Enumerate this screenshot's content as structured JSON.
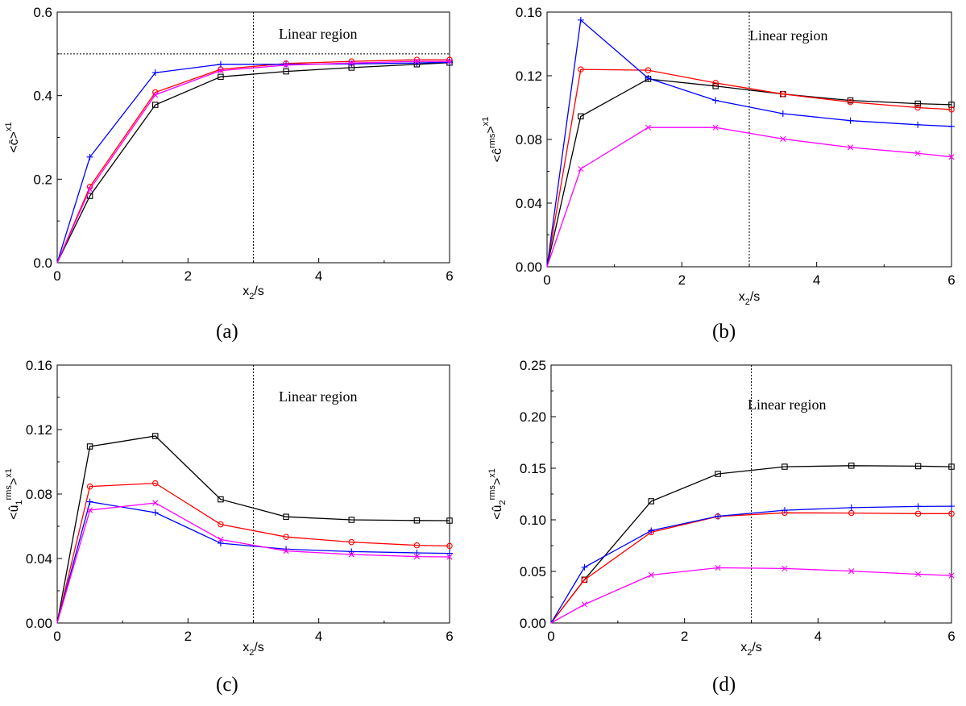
{
  "chart_data": [
    {
      "panel": "a",
      "caption": "(a)",
      "type": "line",
      "xlabel": "x2/s",
      "ylabel": "<c̄>x1",
      "xlim": [
        0,
        6
      ],
      "ylim": [
        0,
        0.6
      ],
      "xticks": [
        0,
        2,
        4,
        6
      ],
      "yticks": [
        0.0,
        0.2,
        0.4,
        0.6
      ],
      "ytick_labels": [
        "0.0",
        "0.2",
        "0.4",
        "0.6"
      ],
      "vline_x": 3,
      "hline_y": 0.5,
      "annotation": "Linear region",
      "x": [
        0,
        0.5,
        1.5,
        2.5,
        3.5,
        4.5,
        5.5,
        6
      ],
      "series": [
        {
          "color": "#000000",
          "marker": "square",
          "values": [
            0,
            0.16,
            0.378,
            0.445,
            0.458,
            0.467,
            0.475,
            0.479
          ]
        },
        {
          "color": "#ff0000",
          "marker": "circle",
          "values": [
            0,
            0.182,
            0.408,
            0.463,
            0.477,
            0.482,
            0.486,
            0.486
          ]
        },
        {
          "color": "#0000ff",
          "marker": "plus",
          "values": [
            0,
            0.253,
            0.455,
            0.475,
            0.475,
            0.476,
            0.478,
            0.48
          ]
        },
        {
          "color": "#ff00ff",
          "marker": "cross",
          "values": [
            0,
            0.176,
            0.402,
            0.46,
            0.473,
            0.478,
            0.482,
            0.482
          ]
        }
      ]
    },
    {
      "panel": "b",
      "caption": "(b)",
      "type": "line",
      "xlabel": "x2/s",
      "ylabel": "<ĉrms>x1",
      "xlim": [
        0,
        6
      ],
      "ylim": [
        0,
        0.16
      ],
      "xticks": [
        0,
        2,
        4,
        6
      ],
      "yticks": [
        0.0,
        0.04,
        0.08,
        0.12,
        0.16
      ],
      "ytick_labels": [
        "0.00",
        "0.04",
        "0.08",
        "0.12",
        "0.16"
      ],
      "vline_x": 3,
      "annotation": "Linear region",
      "x": [
        0,
        0.5,
        1.5,
        2.5,
        3.5,
        4.5,
        5.5,
        6
      ],
      "series": [
        {
          "color": "#000000",
          "marker": "square",
          "values": [
            0,
            0.0945,
            0.118,
            0.1135,
            0.1085,
            0.1045,
            0.1025,
            0.1018
          ]
        },
        {
          "color": "#ff0000",
          "marker": "circle",
          "values": [
            0,
            0.124,
            0.1235,
            0.1155,
            0.1085,
            0.1035,
            0.1,
            0.0988
          ]
        },
        {
          "color": "#0000ff",
          "marker": "plus",
          "values": [
            0,
            0.155,
            0.1185,
            0.1045,
            0.0962,
            0.0918,
            0.0892,
            0.0882
          ]
        },
        {
          "color": "#ff00ff",
          "marker": "cross",
          "values": [
            0,
            0.0615,
            0.0875,
            0.0875,
            0.0803,
            0.075,
            0.0713,
            0.069
          ]
        }
      ]
    },
    {
      "panel": "c",
      "caption": "(c)",
      "type": "line",
      "xlabel": "x2/s",
      "ylabel": "<û1rms>x1",
      "xlim": [
        0,
        6
      ],
      "ylim": [
        0,
        0.16
      ],
      "xticks": [
        0,
        2,
        4,
        6
      ],
      "yticks": [
        0.0,
        0.04,
        0.08,
        0.12,
        0.16
      ],
      "ytick_labels": [
        "0.00",
        "0.04",
        "0.08",
        "0.12",
        "0.16"
      ],
      "vline_x": 3,
      "annotation": "Linear region",
      "x": [
        0,
        0.5,
        1.5,
        2.5,
        3.5,
        4.5,
        5.5,
        6
      ],
      "series": [
        {
          "color": "#000000",
          "marker": "square",
          "values": [
            0,
            0.1095,
            0.116,
            0.0767,
            0.0659,
            0.064,
            0.0636,
            0.0635
          ]
        },
        {
          "color": "#ff0000",
          "marker": "circle",
          "values": [
            0,
            0.0847,
            0.0867,
            0.0612,
            0.0534,
            0.0502,
            0.0482,
            0.0478
          ]
        },
        {
          "color": "#0000ff",
          "marker": "plus",
          "values": [
            0,
            0.0752,
            0.0685,
            0.0495,
            0.0458,
            0.0443,
            0.0435,
            0.0432
          ]
        },
        {
          "color": "#ff00ff",
          "marker": "cross",
          "values": [
            0,
            0.07,
            0.0745,
            0.0518,
            0.0447,
            0.0425,
            0.0412,
            0.041
          ]
        }
      ]
    },
    {
      "panel": "d",
      "caption": "(d)",
      "type": "line",
      "xlabel": "x2/s",
      "ylabel": "<û2rms>x1",
      "xlim": [
        0,
        6
      ],
      "ylim": [
        0,
        0.25
      ],
      "xticks": [
        0,
        2,
        4,
        6
      ],
      "yticks": [
        0.0,
        0.05,
        0.1,
        0.15,
        0.2,
        0.25
      ],
      "ytick_labels": [
        "0.00",
        "0.05",
        "0.10",
        "0.15",
        "0.20",
        "0.25"
      ],
      "vline_x": 3,
      "annotation": "Linear region",
      "x": [
        0,
        0.5,
        1.5,
        2.5,
        3.5,
        4.5,
        5.5,
        6
      ],
      "series": [
        {
          "color": "#000000",
          "marker": "square",
          "values": [
            0,
            0.042,
            0.118,
            0.1445,
            0.1515,
            0.1525,
            0.152,
            0.1515
          ]
        },
        {
          "color": "#ff0000",
          "marker": "circle",
          "values": [
            0,
            0.0418,
            0.088,
            0.1033,
            0.1068,
            0.1066,
            0.106,
            0.106
          ]
        },
        {
          "color": "#0000ff",
          "marker": "plus",
          "values": [
            0,
            0.054,
            0.0895,
            0.1035,
            0.1093,
            0.1118,
            0.113,
            0.1132
          ]
        },
        {
          "color": "#ff00ff",
          "marker": "cross",
          "values": [
            0,
            0.018,
            0.0465,
            0.0535,
            0.0528,
            0.0503,
            0.0473,
            0.046
          ]
        }
      ]
    }
  ]
}
